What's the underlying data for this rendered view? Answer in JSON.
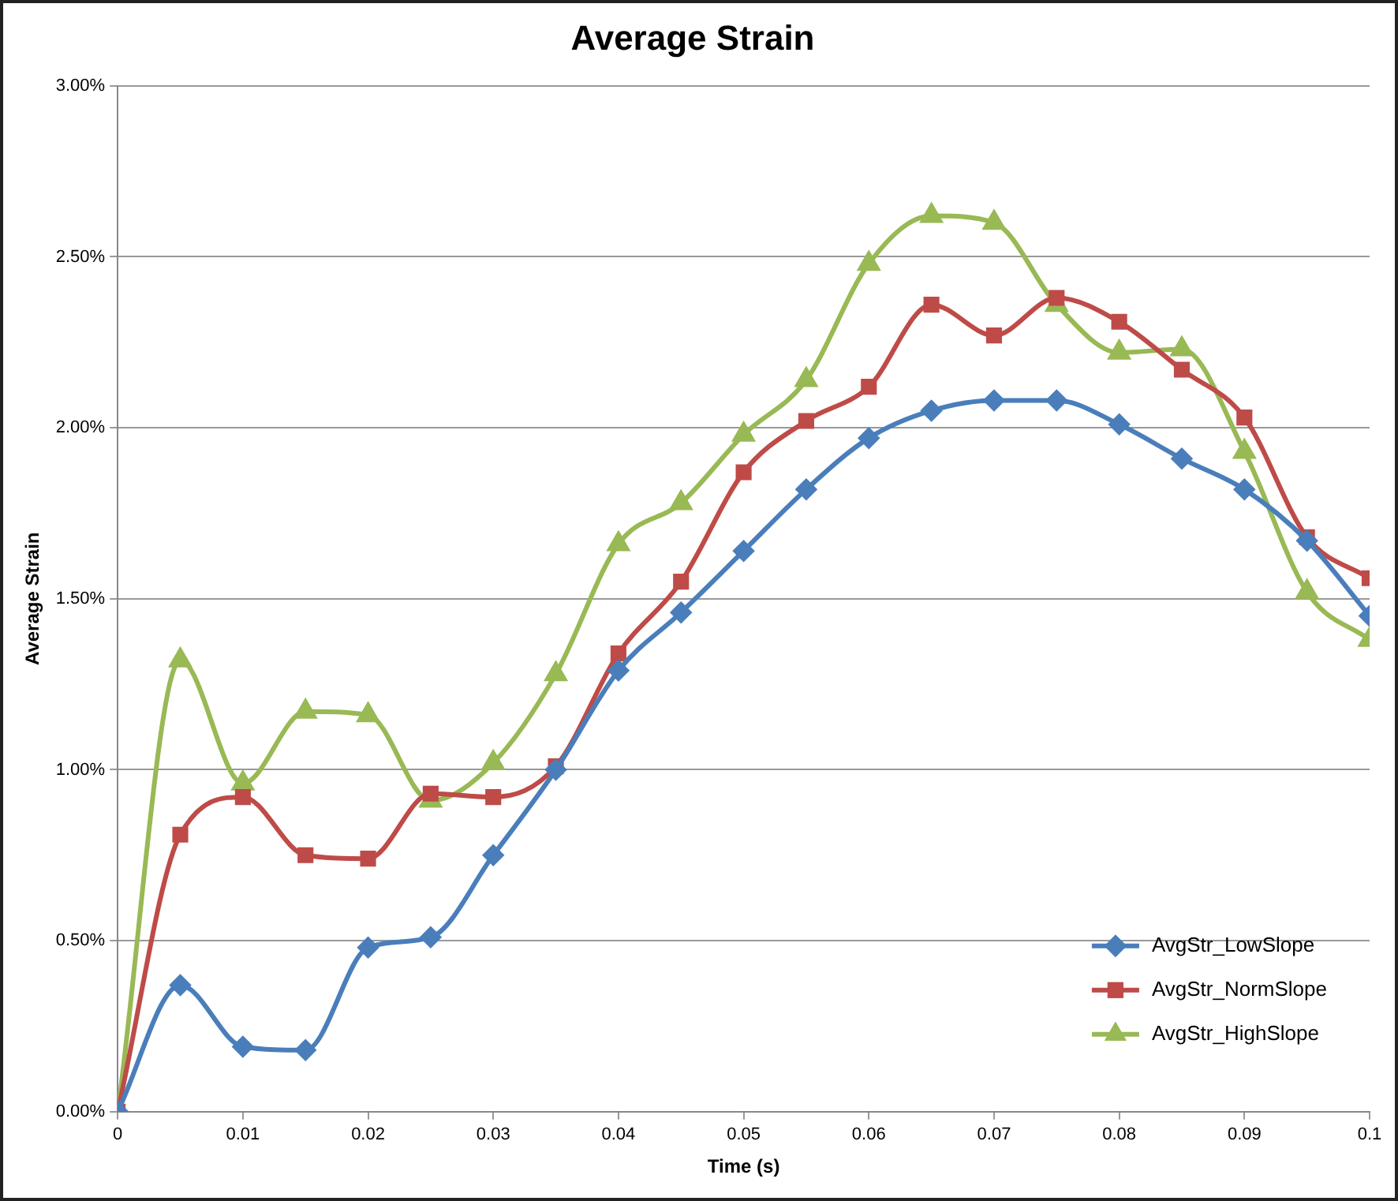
{
  "chart_data": {
    "type": "line",
    "title": "Average Strain",
    "xlabel": "Time (s)",
    "ylabel": "Average Strain",
    "x": [
      0,
      0.005,
      0.01,
      0.015,
      0.02,
      0.025,
      0.03,
      0.035,
      0.04,
      0.045,
      0.05,
      0.055,
      0.06,
      0.065,
      0.07,
      0.075,
      0.08,
      0.085,
      0.09,
      0.095,
      0.1
    ],
    "series": [
      {
        "name": "AvgStr_LowSlope",
        "color": "#4a7ebb",
        "marker": "diamond",
        "values": [
          0,
          0.37,
          0.19,
          0.18,
          0.48,
          0.51,
          0.75,
          1.0,
          1.29,
          1.46,
          1.64,
          1.82,
          1.97,
          2.05,
          2.08,
          2.08,
          2.01,
          1.91,
          1.82,
          1.67,
          1.45
        ]
      },
      {
        "name": "AvgStr_NormSlope",
        "color": "#be4b48",
        "marker": "square",
        "values": [
          0,
          0.81,
          0.92,
          0.75,
          0.74,
          0.93,
          0.92,
          1.01,
          1.34,
          1.55,
          1.87,
          2.02,
          2.12,
          2.36,
          2.27,
          2.38,
          2.31,
          2.17,
          2.03,
          1.68,
          1.56
        ]
      },
      {
        "name": "AvgStr_HighSlope",
        "color": "#98b954",
        "marker": "triangle",
        "values": [
          0,
          1.32,
          0.96,
          1.17,
          1.16,
          0.91,
          1.02,
          1.28,
          1.66,
          1.78,
          1.98,
          2.14,
          2.48,
          2.62,
          2.6,
          2.36,
          2.22,
          2.23,
          1.93,
          1.52,
          1.38
        ]
      }
    ],
    "xlim": [
      0,
      0.1
    ],
    "xticks": [
      0,
      0.01,
      0.02,
      0.03,
      0.04,
      0.05,
      0.06,
      0.07,
      0.08,
      0.09,
      0.1
    ],
    "ylim": [
      0,
      3
    ],
    "yticks": [
      {
        "value": 0,
        "label": "0.00%"
      },
      {
        "value": 0.5,
        "label": "0.50%"
      },
      {
        "value": 1,
        "label": "1.00%"
      },
      {
        "value": 1.5,
        "label": "1.50%"
      },
      {
        "value": 2,
        "label": "2.00%"
      },
      {
        "value": 2.5,
        "label": "2.50%"
      },
      {
        "value": 3,
        "label": "3.00%"
      }
    ],
    "grid": "y",
    "legend": "bottom right",
    "line_style": "solid"
  }
}
